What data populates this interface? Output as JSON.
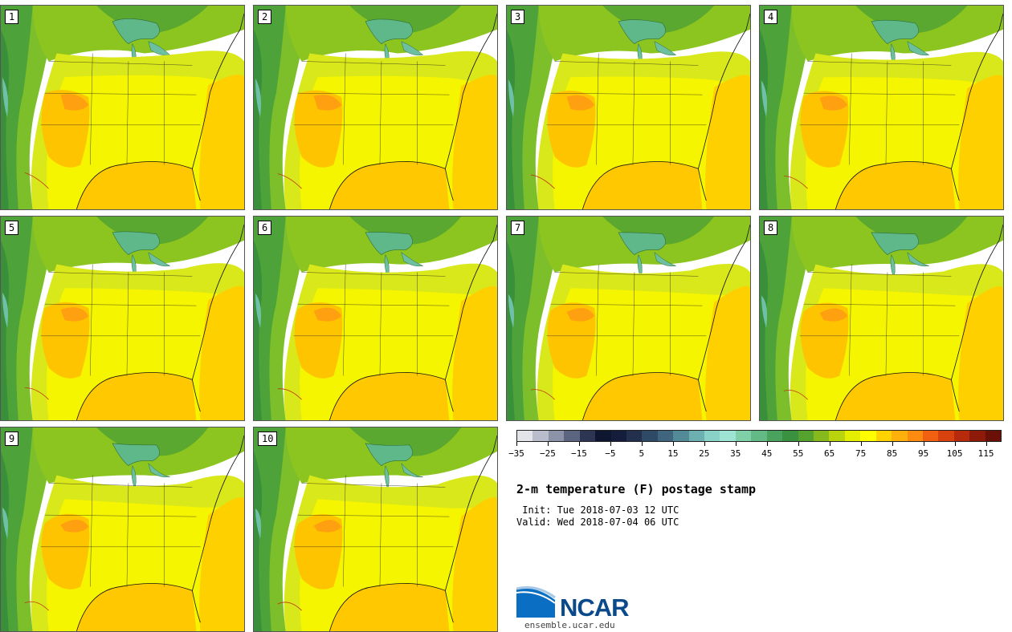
{
  "panels": [
    {
      "label": "1",
      "variant": 0
    },
    {
      "label": "2",
      "variant": 1
    },
    {
      "label": "3",
      "variant": 2
    },
    {
      "label": "4",
      "variant": 3
    },
    {
      "label": "5",
      "variant": 4
    },
    {
      "label": "6",
      "variant": 5
    },
    {
      "label": "7",
      "variant": 6
    },
    {
      "label": "8",
      "variant": 7
    },
    {
      "label": "9",
      "variant": 8
    },
    {
      "label": "10",
      "variant": 9
    }
  ],
  "colorbar": {
    "colors": [
      "#e2e4ea",
      "#b8bccb",
      "#8c92a8",
      "#5c6580",
      "#2c3552",
      "#0e1630",
      "#141e3c",
      "#22304e",
      "#2f4a66",
      "#40667f",
      "#538a98",
      "#6cb0b2",
      "#88d2c8",
      "#9ee4d4",
      "#7fcfa8",
      "#62b985",
      "#49a35e",
      "#3a9140",
      "#55a32e",
      "#86ba1c",
      "#b9d40c",
      "#e3ee00",
      "#ffff00",
      "#ffd300",
      "#ffb00a",
      "#ff8a10",
      "#f06010",
      "#d8420e",
      "#b82a0c",
      "#8e1a0a",
      "#6a1006"
    ],
    "ticks": [
      "−35",
      "−25",
      "−15",
      "−5",
      "5",
      "15",
      "25",
      "35",
      "45",
      "55",
      "65",
      "75",
      "85",
      "95",
      "105",
      "115"
    ]
  },
  "title": "2-m temperature (F) postage stamp",
  "init": " Init: Tue 2018-07-03 12 UTC",
  "valid": "Valid: Wed 2018-07-04 06 UTC",
  "logo": {
    "text": "NCAR",
    "url": "ensemble.ucar.edu",
    "color": "#0a4a8a",
    "accent": "#1f7fd0"
  }
}
